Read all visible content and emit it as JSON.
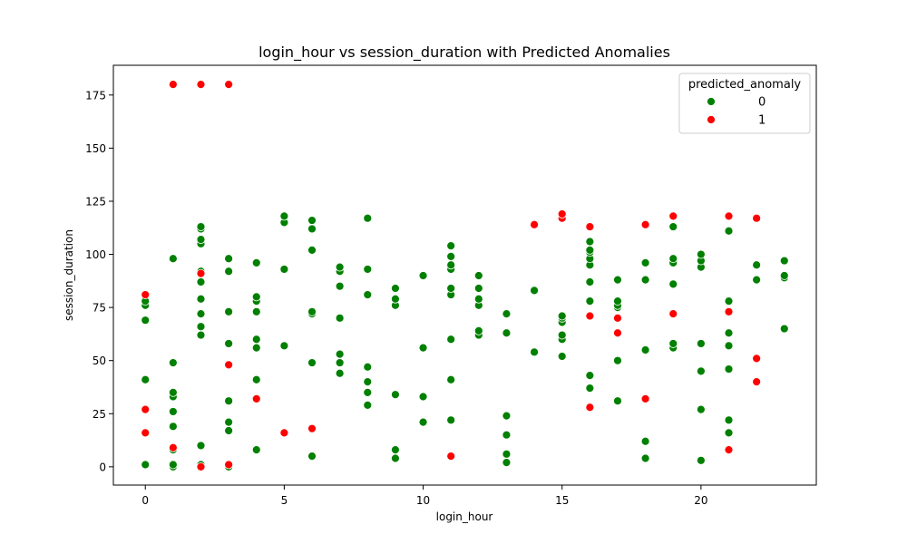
{
  "chart_data": {
    "type": "scatter",
    "title": "login_hour vs session_duration with Predicted Anomalies",
    "xlabel": "login_hour",
    "ylabel": "session_duration",
    "xlim": [
      -1.15,
      24.15
    ],
    "ylim": [
      -8.6,
      189
    ],
    "xticks": [
      0,
      5,
      10,
      15,
      20
    ],
    "yticks": [
      0,
      25,
      50,
      75,
      100,
      125,
      150,
      175
    ],
    "grid": false,
    "legend": {
      "title": "predicted_anomaly",
      "position": "top-right"
    },
    "series": [
      {
        "name": "0",
        "color": "#008000",
        "points": [
          [
            0,
            1
          ],
          [
            0,
            41
          ],
          [
            0,
            69
          ],
          [
            0,
            76
          ],
          [
            0,
            78
          ],
          [
            1,
            0
          ],
          [
            1,
            1
          ],
          [
            1,
            8
          ],
          [
            1,
            19
          ],
          [
            1,
            26
          ],
          [
            1,
            33
          ],
          [
            1,
            35
          ],
          [
            1,
            49
          ],
          [
            1,
            98
          ],
          [
            2,
            1
          ],
          [
            2,
            10
          ],
          [
            2,
            62
          ],
          [
            2,
            66
          ],
          [
            2,
            72
          ],
          [
            2,
            79
          ],
          [
            2,
            87
          ],
          [
            2,
            92
          ],
          [
            2,
            105
          ],
          [
            2,
            107
          ],
          [
            2,
            112
          ],
          [
            2,
            113
          ],
          [
            3,
            0
          ],
          [
            3,
            17
          ],
          [
            3,
            21
          ],
          [
            3,
            31
          ],
          [
            3,
            58
          ],
          [
            3,
            73
          ],
          [
            3,
            92
          ],
          [
            3,
            98
          ],
          [
            4,
            8
          ],
          [
            4,
            41
          ],
          [
            4,
            56
          ],
          [
            4,
            60
          ],
          [
            4,
            73
          ],
          [
            4,
            78
          ],
          [
            4,
            80
          ],
          [
            4,
            96
          ],
          [
            5,
            57
          ],
          [
            5,
            93
          ],
          [
            5,
            115
          ],
          [
            5,
            118
          ],
          [
            6,
            5
          ],
          [
            6,
            49
          ],
          [
            6,
            72
          ],
          [
            6,
            73
          ],
          [
            6,
            102
          ],
          [
            6,
            112
          ],
          [
            6,
            116
          ],
          [
            7,
            44
          ],
          [
            7,
            49
          ],
          [
            7,
            53
          ],
          [
            7,
            70
          ],
          [
            7,
            85
          ],
          [
            7,
            92
          ],
          [
            7,
            94
          ],
          [
            8,
            29
          ],
          [
            8,
            35
          ],
          [
            8,
            40
          ],
          [
            8,
            47
          ],
          [
            8,
            81
          ],
          [
            8,
            93
          ],
          [
            8,
            117
          ],
          [
            9,
            4
          ],
          [
            9,
            8
          ],
          [
            9,
            34
          ],
          [
            9,
            76
          ],
          [
            9,
            79
          ],
          [
            9,
            84
          ],
          [
            10,
            21
          ],
          [
            10,
            33
          ],
          [
            10,
            56
          ],
          [
            10,
            90
          ],
          [
            11,
            22
          ],
          [
            11,
            41
          ],
          [
            11,
            60
          ],
          [
            11,
            81
          ],
          [
            11,
            84
          ],
          [
            11,
            93
          ],
          [
            11,
            95
          ],
          [
            11,
            99
          ],
          [
            11,
            104
          ],
          [
            12,
            62
          ],
          [
            12,
            64
          ],
          [
            12,
            76
          ],
          [
            12,
            79
          ],
          [
            12,
            84
          ],
          [
            12,
            90
          ],
          [
            13,
            2
          ],
          [
            13,
            6
          ],
          [
            13,
            15
          ],
          [
            13,
            24
          ],
          [
            13,
            63
          ],
          [
            13,
            72
          ],
          [
            14,
            54
          ],
          [
            14,
            83
          ],
          [
            15,
            52
          ],
          [
            15,
            60
          ],
          [
            15,
            62
          ],
          [
            15,
            68
          ],
          [
            15,
            70
          ],
          [
            15,
            71
          ],
          [
            16,
            37
          ],
          [
            16,
            43
          ],
          [
            16,
            78
          ],
          [
            16,
            87
          ],
          [
            16,
            95
          ],
          [
            16,
            98
          ],
          [
            16,
            101
          ],
          [
            16,
            102
          ],
          [
            16,
            106
          ],
          [
            17,
            31
          ],
          [
            17,
            50
          ],
          [
            17,
            75
          ],
          [
            17,
            76
          ],
          [
            17,
            78
          ],
          [
            17,
            88
          ],
          [
            18,
            4
          ],
          [
            18,
            12
          ],
          [
            18,
            55
          ],
          [
            18,
            88
          ],
          [
            18,
            96
          ],
          [
            19,
            56
          ],
          [
            19,
            58
          ],
          [
            19,
            86
          ],
          [
            19,
            96
          ],
          [
            19,
            98
          ],
          [
            19,
            113
          ],
          [
            20,
            3
          ],
          [
            20,
            27
          ],
          [
            20,
            45
          ],
          [
            20,
            58
          ],
          [
            20,
            94
          ],
          [
            20,
            97
          ],
          [
            20,
            100
          ],
          [
            21,
            16
          ],
          [
            21,
            22
          ],
          [
            21,
            46
          ],
          [
            21,
            57
          ],
          [
            21,
            63
          ],
          [
            21,
            78
          ],
          [
            21,
            111
          ],
          [
            22,
            88
          ],
          [
            22,
            95
          ],
          [
            23,
            65
          ],
          [
            23,
            89
          ],
          [
            23,
            90
          ],
          [
            23,
            97
          ]
        ]
      },
      {
        "name": "1",
        "color": "#ff0000",
        "points": [
          [
            0,
            16
          ],
          [
            0,
            27
          ],
          [
            0,
            81
          ],
          [
            1,
            9
          ],
          [
            1,
            180
          ],
          [
            2,
            0
          ],
          [
            2,
            91
          ],
          [
            2,
            180
          ],
          [
            3,
            1
          ],
          [
            3,
            48
          ],
          [
            3,
            180
          ],
          [
            4,
            32
          ],
          [
            5,
            16
          ],
          [
            6,
            18
          ],
          [
            11,
            5
          ],
          [
            14,
            114
          ],
          [
            15,
            117
          ],
          [
            15,
            119
          ],
          [
            16,
            28
          ],
          [
            16,
            71
          ],
          [
            16,
            113
          ],
          [
            17,
            63
          ],
          [
            17,
            70
          ],
          [
            18,
            32
          ],
          [
            18,
            114
          ],
          [
            19,
            72
          ],
          [
            19,
            118
          ],
          [
            21,
            8
          ],
          [
            21,
            73
          ],
          [
            21,
            118
          ],
          [
            22,
            40
          ],
          [
            22,
            51
          ],
          [
            22,
            117
          ]
        ]
      }
    ]
  }
}
